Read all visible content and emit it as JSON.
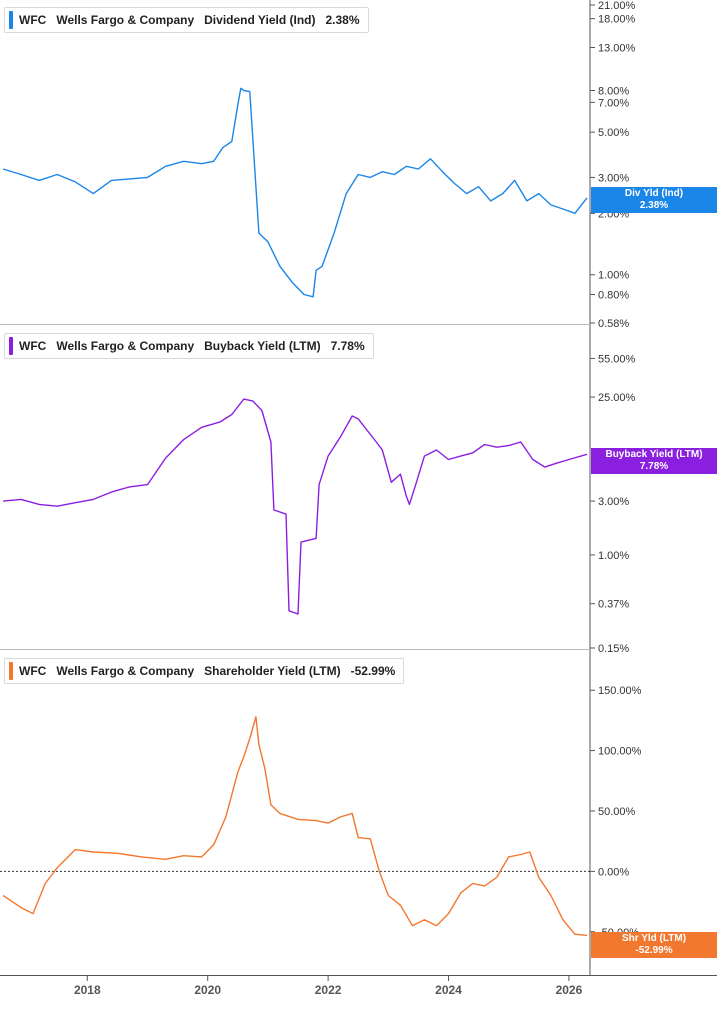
{
  "chart_data": [
    {
      "type": "line",
      "legend": {
        "ticker": "WFC",
        "company": "Wells Fargo & Company",
        "metric": "Dividend Yield (Ind)",
        "value": "2.38%"
      },
      "end_label": {
        "line1": "Div Yld (Ind)",
        "line2": "2.38%"
      },
      "color": "#1a86e8",
      "scale": "log",
      "y_ticks": [
        "21.00%",
        "18.00%",
        "13.00%",
        "8.00%",
        "7.00%",
        "5.00%",
        "3.00%",
        "2.00%",
        "1.00%",
        "0.80%",
        "0.58%"
      ],
      "ylim": [
        0.58,
        21.0
      ],
      "series": [
        {
          "x": [
            2016.6,
            2016.9,
            2017.2,
            2017.5,
            2017.8,
            2018.1,
            2018.4,
            2018.7,
            2019.0,
            2019.3,
            2019.6,
            2019.9,
            2020.1,
            2020.25,
            2020.4,
            2020.5,
            2020.55,
            2020.6,
            2020.7,
            2020.85,
            2021.0,
            2021.2,
            2021.4,
            2021.6,
            2021.75,
            2021.8,
            2021.9,
            2022.1,
            2022.3,
            2022.5,
            2022.7,
            2022.9,
            2023.1,
            2023.3,
            2023.5,
            2023.7,
            2023.9,
            2024.1,
            2024.3,
            2024.5,
            2024.7,
            2024.9,
            2025.1,
            2025.3,
            2025.5,
            2025.7,
            2025.9,
            2026.1,
            2026.3
          ],
          "values": [
            3.3,
            3.1,
            2.9,
            3.1,
            2.85,
            2.5,
            2.9,
            2.95,
            3.0,
            3.4,
            3.6,
            3.5,
            3.6,
            4.2,
            4.5,
            6.8,
            8.2,
            8.0,
            7.9,
            1.6,
            1.45,
            1.1,
            0.92,
            0.8,
            0.78,
            1.05,
            1.1,
            1.6,
            2.5,
            3.1,
            3.0,
            3.2,
            3.1,
            3.4,
            3.3,
            3.7,
            3.2,
            2.8,
            2.5,
            2.7,
            2.3,
            2.5,
            2.9,
            2.3,
            2.5,
            2.2,
            2.1,
            2.0,
            2.38
          ]
        }
      ]
    },
    {
      "type": "line",
      "legend": {
        "ticker": "WFC",
        "company": "Wells Fargo & Company",
        "metric": "Buyback Yield (LTM)",
        "value": "7.78%"
      },
      "end_label": {
        "line1": "Buyback Yield (LTM)",
        "line2": "7.78%"
      },
      "color": "#8b1fe0",
      "scale": "log",
      "y_ticks": [
        "55.00%",
        "25.00%",
        "3.00%",
        "1.00%",
        "0.37%",
        "0.15%"
      ],
      "ylim": [
        0.15,
        80
      ],
      "series": [
        {
          "x": [
            2016.6,
            2016.9,
            2017.2,
            2017.5,
            2017.8,
            2018.1,
            2018.4,
            2018.7,
            2019.0,
            2019.3,
            2019.6,
            2019.9,
            2020.2,
            2020.4,
            2020.6,
            2020.75,
            2020.9,
            2021.05,
            2021.1,
            2021.3,
            2021.35,
            2021.5,
            2021.55,
            2021.8,
            2021.85,
            2022.0,
            2022.2,
            2022.4,
            2022.5,
            2022.8,
            2022.9,
            2023.05,
            2023.2,
            2023.3,
            2023.35,
            2023.45,
            2023.6,
            2023.8,
            2024.0,
            2024.2,
            2024.4,
            2024.6,
            2024.8,
            2025.0,
            2025.2,
            2025.4,
            2025.6,
            2025.8,
            2026.0,
            2026.3
          ],
          "values": [
            3.0,
            3.1,
            2.8,
            2.7,
            2.9,
            3.1,
            3.6,
            4.0,
            4.2,
            7.2,
            10.5,
            13.5,
            15.0,
            17.5,
            24.0,
            23.0,
            19.0,
            10.0,
            2.5,
            2.3,
            0.32,
            0.3,
            1.3,
            1.4,
            4.2,
            7.5,
            11.0,
            17.0,
            16.0,
            10.0,
            8.5,
            4.4,
            5.2,
            3.3,
            2.8,
            4.1,
            7.5,
            8.5,
            7.0,
            7.5,
            8.0,
            9.5,
            9.0,
            9.3,
            10.0,
            7.0,
            6.0,
            6.5,
            7.0,
            7.78
          ]
        }
      ]
    },
    {
      "type": "line",
      "legend": {
        "ticker": "WFC",
        "company": "Wells Fargo & Company",
        "metric": "Shareholder Yield (LTM)",
        "value": "-52.99%"
      },
      "end_label": {
        "line1": "Shr Yld (LTM)",
        "line2": "-52.99%"
      },
      "color": "#f2782f",
      "scale": "linear",
      "y_ticks": [
        "150.00%",
        "100.00%",
        "50.00%",
        "0.00%",
        "-50.00%"
      ],
      "ylim": [
        -80,
        175
      ],
      "series": [
        {
          "x": [
            2016.6,
            2016.9,
            2017.1,
            2017.3,
            2017.5,
            2017.8,
            2018.1,
            2018.5,
            2018.9,
            2019.3,
            2019.6,
            2019.9,
            2020.1,
            2020.3,
            2020.5,
            2020.6,
            2020.7,
            2020.8,
            2020.85,
            2020.95,
            2021.05,
            2021.2,
            2021.5,
            2021.8,
            2022.0,
            2022.2,
            2022.4,
            2022.5,
            2022.7,
            2022.85,
            2023.0,
            2023.2,
            2023.4,
            2023.6,
            2023.8,
            2024.0,
            2024.2,
            2024.4,
            2024.6,
            2024.8,
            2025.0,
            2025.2,
            2025.35,
            2025.5,
            2025.7,
            2025.9,
            2026.1,
            2026.3
          ],
          "values": [
            -20,
            -30,
            -35,
            -10,
            3,
            18,
            16,
            15,
            12,
            10,
            13,
            12,
            22,
            45,
            82,
            95,
            110,
            128,
            105,
            85,
            55,
            48,
            43,
            42,
            40,
            45,
            48,
            28,
            27,
            0,
            -20,
            -28,
            -45,
            -40,
            -45,
            -35,
            -18,
            -10,
            -12,
            -5,
            12,
            14,
            16,
            -5,
            -20,
            -40,
            -52,
            -52.99
          ]
        }
      ]
    }
  ],
  "x_axis": {
    "ticks": [
      "2018",
      "2020",
      "2022",
      "2024",
      "2026"
    ],
    "tick_values": [
      2018,
      2020,
      2022,
      2024,
      2026
    ],
    "xlim": [
      2016.55,
      2026.35
    ]
  }
}
